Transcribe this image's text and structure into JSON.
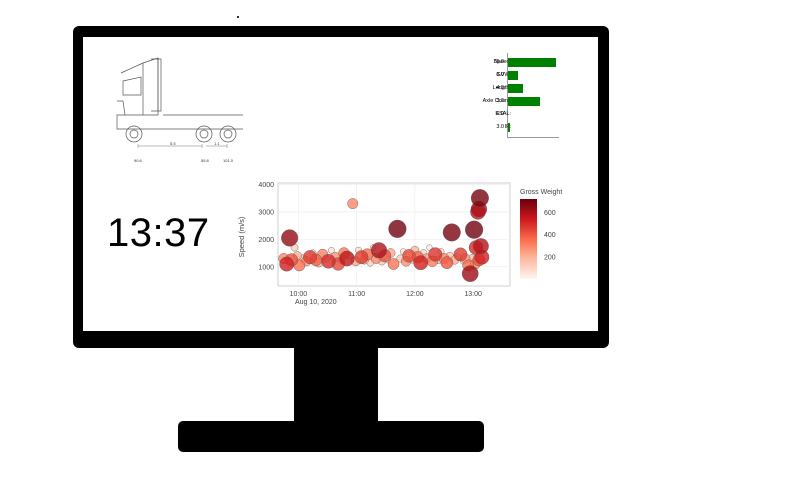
{
  "clock": {
    "time": "13:37"
  },
  "truck": {
    "dimensions": [
      "5.5",
      "1.1"
    ],
    "axle_loads": [
      "90.6",
      "55.8",
      "101.0"
    ]
  },
  "vehicle_stats": [
    {
      "label": "Speed:",
      "value": "76.0",
      "fraction": 0.96
    },
    {
      "label": "GVW:",
      "value": "8.0",
      "fraction": 0.2
    },
    {
      "label": "Length:",
      "value": "4.0",
      "fraction": 0.3
    },
    {
      "label": "Axle Count:",
      "value": "3.0",
      "fraction": 0.63
    },
    {
      "label": "ESAL:",
      "value": "6.0",
      "fraction": 0.0
    },
    {
      "label": "IF:",
      "value": "3.0",
      "fraction": 0.04
    }
  ],
  "colors": {
    "stat_bar": "#008000",
    "scale_high": "#67000d",
    "scale_low": "#fff5f0"
  },
  "chart_data": {
    "type": "scatter",
    "title": "",
    "xlabel": "",
    "ylabel": "Speed (m/s)",
    "x_ticks": [
      "10:00",
      "11:00",
      "12:00",
      "13:00"
    ],
    "x_date_label": "Aug 10, 2020",
    "x_range": [
      "09:39",
      "13:38"
    ],
    "ylim": [
      300,
      4050
    ],
    "y_ticks": [
      1000,
      2000,
      3000,
      4000
    ],
    "grid": true,
    "colorbar": {
      "title": "Gross Weight",
      "ticks": [
        200,
        400,
        600
      ],
      "range": [
        0,
        720
      ]
    },
    "points": [
      {
        "t": "09:51",
        "y": 2050,
        "w": 640
      },
      {
        "t": "09:45",
        "y": 1300,
        "w": 300
      },
      {
        "t": "09:48",
        "y": 1100,
        "w": 520
      },
      {
        "t": "09:53",
        "y": 1250,
        "w": 420
      },
      {
        "t": "09:56",
        "y": 1700,
        "w": 120
      },
      {
        "t": "09:59",
        "y": 1400,
        "w": 200
      },
      {
        "t": "10:01",
        "y": 1050,
        "w": 350
      },
      {
        "t": "10:05",
        "y": 1300,
        "w": 150
      },
      {
        "t": "10:08",
        "y": 1200,
        "w": 260
      },
      {
        "t": "10:12",
        "y": 1350,
        "w": 470
      },
      {
        "t": "10:15",
        "y": 1500,
        "w": 90
      },
      {
        "t": "10:18",
        "y": 1250,
        "w": 380
      },
      {
        "t": "10:21",
        "y": 1150,
        "w": 220
      },
      {
        "t": "10:25",
        "y": 1450,
        "w": 310
      },
      {
        "t": "10:28",
        "y": 1300,
        "w": 140
      },
      {
        "t": "10:31",
        "y": 1200,
        "w": 500
      },
      {
        "t": "10:34",
        "y": 1600,
        "w": 60
      },
      {
        "t": "10:38",
        "y": 1350,
        "w": 270
      },
      {
        "t": "10:41",
        "y": 1100,
        "w": 430
      },
      {
        "t": "10:44",
        "y": 1250,
        "w": 180
      },
      {
        "t": "10:47",
        "y": 1500,
        "w": 330
      },
      {
        "t": "10:50",
        "y": 1300,
        "w": 560
      },
      {
        "t": "10:53",
        "y": 1400,
        "w": 100
      },
      {
        "t": "10:56",
        "y": 3300,
        "w": 300
      },
      {
        "t": "10:59",
        "y": 1200,
        "w": 240
      },
      {
        "t": "11:02",
        "y": 1600,
        "w": 80
      },
      {
        "t": "11:05",
        "y": 1350,
        "w": 460
      },
      {
        "t": "11:08",
        "y": 1250,
        "w": 200
      },
      {
        "t": "11:11",
        "y": 1450,
        "w": 360
      },
      {
        "t": "11:14",
        "y": 1150,
        "w": 120
      },
      {
        "t": "11:17",
        "y": 1700,
        "w": 50
      },
      {
        "t": "11:20",
        "y": 1300,
        "w": 290
      },
      {
        "t": "11:23",
        "y": 1600,
        "w": 590
      },
      {
        "t": "11:26",
        "y": 1200,
        "w": 150
      },
      {
        "t": "11:29",
        "y": 1400,
        "w": 410
      },
      {
        "t": "11:32",
        "y": 1250,
        "w": 70
      },
      {
        "t": "11:35",
        "y": 1500,
        "w": 230
      },
      {
        "t": "11:38",
        "y": 1100,
        "w": 340
      },
      {
        "t": "11:42",
        "y": 2380,
        "w": 700
      },
      {
        "t": "11:45",
        "y": 1300,
        "w": 130
      },
      {
        "t": "11:48",
        "y": 1550,
        "w": 60
      },
      {
        "t": "11:51",
        "y": 1200,
        "w": 280
      },
      {
        "t": "11:54",
        "y": 1400,
        "w": 440
      },
      {
        "t": "11:57",
        "y": 1250,
        "w": 90
      },
      {
        "t": "12:00",
        "y": 1600,
        "w": 190
      },
      {
        "t": "12:03",
        "y": 1350,
        "w": 370
      },
      {
        "t": "12:06",
        "y": 1150,
        "w": 520
      },
      {
        "t": "12:09",
        "y": 1500,
        "w": 110
      },
      {
        "t": "12:12",
        "y": 1300,
        "w": 250
      },
      {
        "t": "12:15",
        "y": 1700,
        "w": 40
      },
      {
        "t": "12:18",
        "y": 1200,
        "w": 320
      },
      {
        "t": "12:21",
        "y": 1450,
        "w": 480
      },
      {
        "t": "12:24",
        "y": 1250,
        "w": 160
      },
      {
        "t": "12:27",
        "y": 1550,
        "w": 70
      },
      {
        "t": "12:30",
        "y": 1300,
        "w": 300
      },
      {
        "t": "12:33",
        "y": 1150,
        "w": 400
      },
      {
        "t": "12:36",
        "y": 1400,
        "w": 140
      },
      {
        "t": "12:38",
        "y": 2250,
        "w": 690
      },
      {
        "t": "12:41",
        "y": 1250,
        "w": 210
      },
      {
        "t": "12:44",
        "y": 1350,
        "w": 100
      },
      {
        "t": "12:47",
        "y": 1450,
        "w": 460
      },
      {
        "t": "12:50",
        "y": 1200,
        "w": 60
      },
      {
        "t": "12:52",
        "y": 1300,
        "w": 260
      },
      {
        "t": "12:55",
        "y": 1050,
        "w": 350
      },
      {
        "t": "12:57",
        "y": 750,
        "w": 620
      },
      {
        "t": "12:59",
        "y": 1300,
        "w": 180
      },
      {
        "t": "13:01",
        "y": 2350,
        "w": 700
      },
      {
        "t": "13:03",
        "y": 1700,
        "w": 500
      },
      {
        "t": "13:05",
        "y": 3000,
        "w": 560
      },
      {
        "t": "13:06",
        "y": 3100,
        "w": 600
      },
      {
        "t": "13:07",
        "y": 3500,
        "w": 690
      },
      {
        "t": "13:08",
        "y": 1750,
        "w": 580
      },
      {
        "t": "13:09",
        "y": 1350,
        "w": 520
      },
      {
        "t": "13:06",
        "y": 1250,
        "w": 400
      },
      {
        "t": "13:02",
        "y": 1100,
        "w": 300
      }
    ]
  }
}
